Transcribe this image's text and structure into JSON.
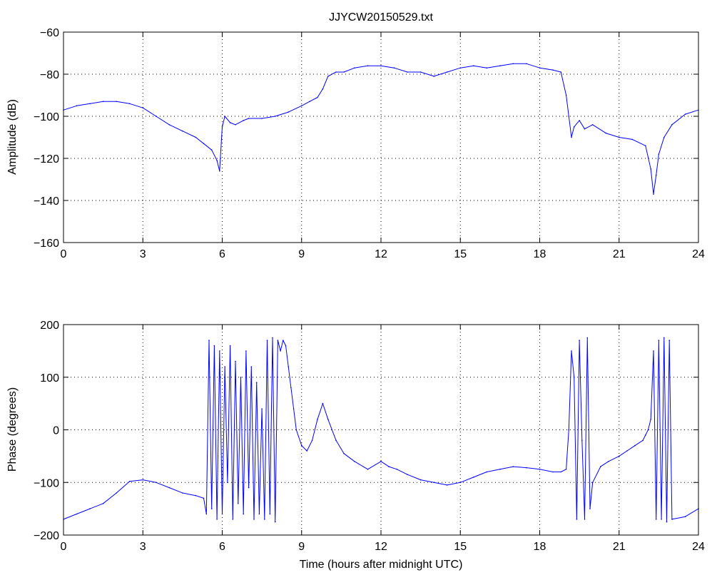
{
  "title": "JJYCW20150529.txt",
  "line_color": "#0000ff",
  "chart_data": [
    {
      "type": "line",
      "id": "amplitude",
      "title": "JJYCW20150529.txt",
      "xlabel": "",
      "ylabel": "Amplitude (dB)",
      "xlim": [
        0,
        24
      ],
      "ylim": [
        -160,
        -60
      ],
      "xticks": [
        0,
        3,
        6,
        9,
        12,
        15,
        18,
        21,
        24
      ],
      "yticks": [
        -160,
        -140,
        -120,
        -100,
        -80,
        -60
      ],
      "xtick_labels": [
        "0",
        "3",
        "6",
        "9",
        "12",
        "15",
        "18",
        "21",
        "24"
      ],
      "ytick_labels": [
        "−160",
        "−140",
        "−120",
        "−100",
        "−80",
        "−60"
      ],
      "grid": true,
      "series": [
        {
          "color": "#0000ff",
          "x": [
            0,
            0.5,
            1,
            1.5,
            2,
            2.5,
            3,
            3.5,
            4,
            4.5,
            5,
            5.3,
            5.6,
            5.8,
            5.9,
            6,
            6.1,
            6.3,
            6.5,
            6.8,
            7,
            7.5,
            8,
            8.5,
            9,
            9.3,
            9.6,
            9.8,
            10,
            10.3,
            10.6,
            11,
            11.5,
            12,
            12.5,
            13,
            13.5,
            14,
            14.5,
            15,
            15.5,
            16,
            16.5,
            17,
            17.5,
            18,
            18.5,
            18.8,
            19,
            19.1,
            19.2,
            19.3,
            19.5,
            19.7,
            20,
            20.5,
            21,
            21.5,
            22,
            22.2,
            22.3,
            22.4,
            22.5,
            22.7,
            23,
            23.5,
            24
          ],
          "y": [
            -97,
            -95,
            -94,
            -93,
            -93,
            -94,
            -96,
            -100,
            -104,
            -107,
            -110,
            -113,
            -116,
            -121,
            -126,
            -105,
            -100,
            -103,
            -104,
            -102,
            -101,
            -101,
            -100,
            -98,
            -95,
            -93,
            -91,
            -87,
            -81,
            -79,
            -79,
            -77,
            -76,
            -76,
            -77,
            -79,
            -79,
            -81,
            -79,
            -77,
            -76,
            -77,
            -76,
            -75,
            -75,
            -77,
            -78,
            -79,
            -90,
            -100,
            -110,
            -105,
            -102,
            -106,
            -104,
            -108,
            -110,
            -111,
            -114,
            -125,
            -137,
            -128,
            -118,
            -110,
            -104,
            -99,
            -97
          ]
        }
      ]
    },
    {
      "type": "line",
      "id": "phase",
      "title": "",
      "xlabel": "Time (hours after midnight UTC)",
      "ylabel": "Phase (degrees)",
      "xlim": [
        0,
        24
      ],
      "ylim": [
        -200,
        200
      ],
      "xticks": [
        0,
        3,
        6,
        9,
        12,
        15,
        18,
        21,
        24
      ],
      "yticks": [
        -200,
        -100,
        0,
        100,
        200
      ],
      "xtick_labels": [
        "0",
        "3",
        "6",
        "9",
        "12",
        "15",
        "18",
        "21",
        "24"
      ],
      "ytick_labels": [
        "−200",
        "−100",
        "0",
        "100",
        "200"
      ],
      "grid": true,
      "series": [
        {
          "color": "#0000ff",
          "x": [
            0,
            0.5,
            1,
            1.5,
            2,
            2.5,
            3,
            3.5,
            4,
            4.5,
            5,
            5.3,
            5.4,
            5.5,
            5.6,
            5.7,
            5.8,
            5.9,
            6,
            6.1,
            6.2,
            6.3,
            6.4,
            6.5,
            6.6,
            6.7,
            6.8,
            6.9,
            7,
            7.1,
            7.2,
            7.3,
            7.4,
            7.5,
            7.6,
            7.7,
            7.8,
            7.9,
            8,
            8.1,
            8.2,
            8.3,
            8.4,
            8.5,
            8.6,
            8.7,
            8.8,
            9,
            9.2,
            9.4,
            9.6,
            9.8,
            10,
            10.3,
            10.6,
            11,
            11.5,
            12,
            12.3,
            12.6,
            13,
            13.5,
            14,
            14.5,
            15,
            15.5,
            16,
            16.5,
            17,
            17.5,
            18,
            18.5,
            18.8,
            19,
            19.1,
            19.2,
            19.3,
            19.4,
            19.5,
            19.6,
            19.7,
            19.8,
            19.9,
            20,
            20.3,
            20.6,
            21,
            21.3,
            21.6,
            21.9,
            22,
            22.1,
            22.2,
            22.3,
            22.4,
            22.5,
            22.6,
            22.7,
            22.8,
            22.9,
            23,
            23.5,
            24
          ],
          "y": [
            -170,
            -160,
            -150,
            -140,
            -120,
            -98,
            -95,
            -100,
            -110,
            -120,
            -125,
            -130,
            -160,
            170,
            -150,
            160,
            -170,
            150,
            -160,
            120,
            -100,
            160,
            -170,
            130,
            -140,
            100,
            -160,
            150,
            -110,
            120,
            -170,
            90,
            -160,
            40,
            -170,
            170,
            -160,
            175,
            -175,
            170,
            150,
            170,
            160,
            120,
            80,
            40,
            0,
            -30,
            -40,
            -20,
            20,
            50,
            20,
            -20,
            -45,
            -60,
            -75,
            -60,
            -70,
            -75,
            -85,
            -95,
            -100,
            -105,
            -100,
            -90,
            -80,
            -75,
            -70,
            -72,
            -75,
            -80,
            -80,
            -75,
            0,
            150,
            100,
            -170,
            170,
            -20,
            -170,
            175,
            -150,
            -100,
            -70,
            -60,
            -50,
            -40,
            -30,
            -20,
            -10,
            0,
            20,
            150,
            -170,
            170,
            -170,
            175,
            -175,
            170,
            -170,
            -165,
            -150
          ]
        }
      ]
    }
  ]
}
